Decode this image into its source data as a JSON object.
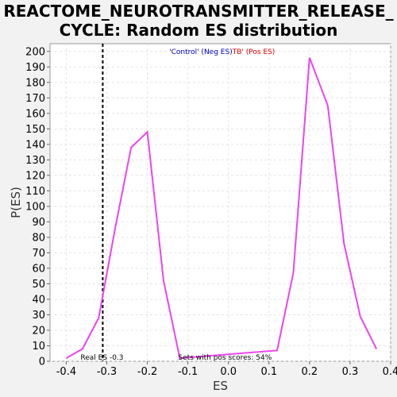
{
  "chart_data": {
    "type": "line",
    "title_line1": "REACTOME_NEUROTRANSMITTER_RELEASE_",
    "title_line2": "CYCLE: Random ES distribution",
    "xlabel": "ES",
    "ylabel": "P(ES)",
    "xlim": [
      -0.44,
      0.4
    ],
    "ylim": [
      0,
      205
    ],
    "x_ticks": [
      -0.4,
      -0.3,
      -0.2,
      -0.1,
      0.0,
      0.1,
      0.2,
      0.3,
      0.4
    ],
    "x_tick_labels": [
      "-0.4",
      "-0.3",
      "-0.2",
      "-0.1",
      "0.0",
      "0.1",
      "0.2",
      "0.3",
      "0.4"
    ],
    "y_ticks": [
      0,
      10,
      20,
      30,
      40,
      50,
      60,
      70,
      80,
      90,
      100,
      110,
      120,
      130,
      140,
      150,
      160,
      170,
      180,
      190,
      200
    ],
    "grid": true,
    "series": [
      {
        "color": "#ee44ee",
        "x": [
          -0.4,
          -0.36,
          -0.32,
          -0.28,
          -0.24,
          -0.2,
          -0.16,
          -0.12,
          0.12,
          0.16,
          0.2,
          0.245,
          0.285,
          0.325,
          0.365
        ],
        "y": [
          2,
          8,
          28,
          85,
          138,
          148,
          52,
          2,
          7,
          57,
          196,
          165,
          76,
          29,
          8
        ]
      }
    ],
    "real_es": -0.31,
    "legend_neg": "'Control' (Neg ES)",
    "legend_pos": "TB' (Pos ES)",
    "legend_neg_color": "#0000cc",
    "legend_pos_color": "#dd0000",
    "real_es_label": "Real ES -0.3",
    "pos_scores_label": "Sets with pos scores: 54%"
  }
}
